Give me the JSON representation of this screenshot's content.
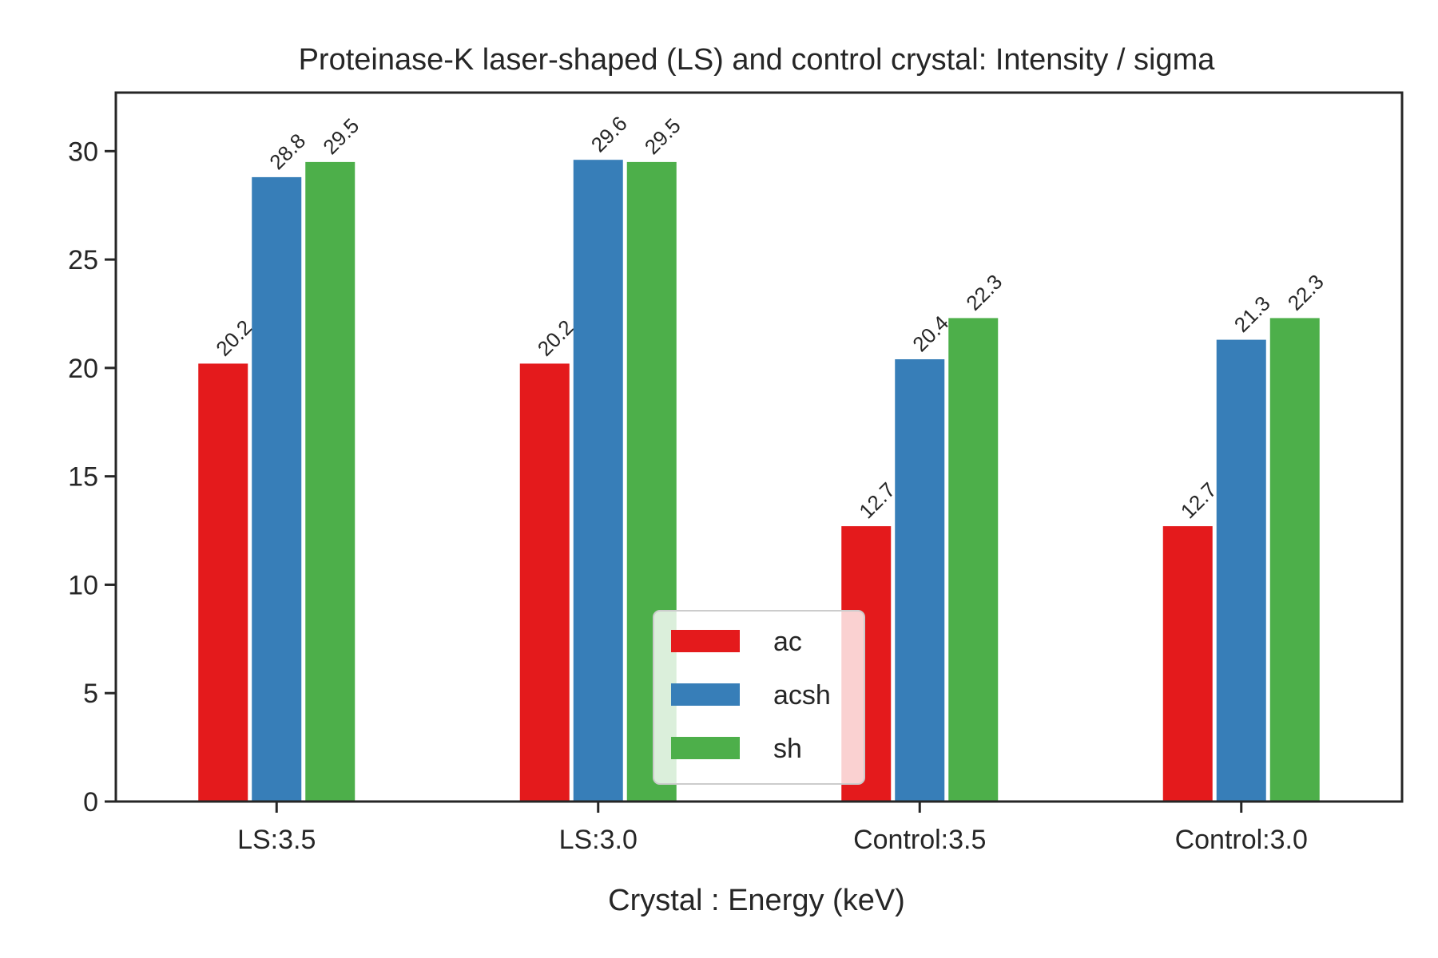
{
  "chart_data": {
    "type": "bar",
    "title": "Proteinase-K laser-shaped (LS) and control crystal: Intensity / sigma",
    "xlabel": "Crystal : Energy (keV)",
    "ylabel": "",
    "categories": [
      "LS:3.5",
      "LS:3.0",
      "Control:3.5",
      "Control:3.0"
    ],
    "series": [
      {
        "name": "ac",
        "color": "#e41a1c",
        "values": [
          20.2,
          20.2,
          12.7,
          12.7
        ],
        "labels": [
          "20.2",
          "20.2",
          "12.7",
          "12.7"
        ]
      },
      {
        "name": "acsh",
        "color": "#377eb8",
        "values": [
          28.8,
          29.6,
          20.4,
          21.3
        ],
        "labels": [
          "28.8",
          "29.6",
          "20.4",
          "21.3"
        ]
      },
      {
        "name": "sh",
        "color": "#4daf4a",
        "values": [
          29.5,
          29.5,
          22.3,
          22.3
        ],
        "labels": [
          "29.5",
          "29.5",
          "22.3",
          "22.3"
        ]
      }
    ],
    "ylim": [
      0,
      32.7
    ],
    "yticks": [
      0,
      5,
      10,
      15,
      20,
      25,
      30
    ],
    "grid": false,
    "legend_position": "bottom-center"
  }
}
